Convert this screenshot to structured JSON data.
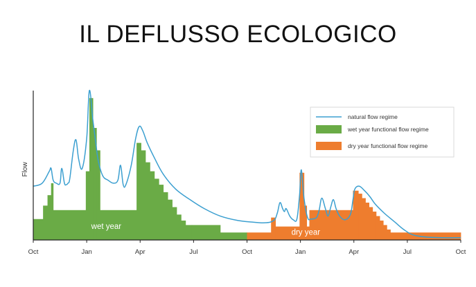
{
  "slide": {
    "title": "IL DEFLUSSO ECOLOGICO"
  },
  "chart_data": {
    "type": "area",
    "title": "",
    "xlabel": "",
    "ylabel": "Flow",
    "xlim": [
      0,
      24
    ],
    "ylim": [
      0,
      100
    ],
    "x_ticks": [
      {
        "x": 0,
        "label": "Oct"
      },
      {
        "x": 3,
        "label": "Jan"
      },
      {
        "x": 6,
        "label": "Apr"
      },
      {
        "x": 9,
        "label": "Jul"
      },
      {
        "x": 12,
        "label": "Oct"
      },
      {
        "x": 15,
        "label": "Jan"
      },
      {
        "x": 18,
        "label": "Apr"
      },
      {
        "x": 21,
        "label": "Jul"
      },
      {
        "x": 24,
        "label": "Oct"
      }
    ],
    "grid": false,
    "legend_position": "top-right",
    "colors": {
      "natural": "#3b9fd0",
      "wet": "#6aab46",
      "dry": "#ee7d2e",
      "axis": "#222222"
    },
    "series": [
      {
        "name": "natural flow regime",
        "kind": "line",
        "x": [
          0,
          0.5,
          0.9,
          1.0,
          1.12,
          1.3,
          1.5,
          1.6,
          1.75,
          1.85,
          1.95,
          2.05,
          2.25,
          2.4,
          2.55,
          2.75,
          3.0,
          3.15,
          3.35,
          3.5,
          3.65,
          3.9,
          4.2,
          4.5,
          4.75,
          4.9,
          5.05,
          5.2,
          5.5,
          5.75,
          5.95,
          6.15,
          6.4,
          6.8,
          7.3,
          8.0,
          8.8,
          9.6,
          10.5,
          11.5,
          12.3,
          13.0,
          13.5,
          13.7,
          13.85,
          14.0,
          14.1,
          14.2,
          14.4,
          14.6,
          14.8,
          14.95,
          15.05,
          15.2,
          15.4,
          15.6,
          15.9,
          16.05,
          16.2,
          16.4,
          16.55,
          16.7,
          16.85,
          17.0,
          17.2,
          17.5,
          17.8,
          17.95,
          18.05,
          18.3,
          18.6,
          18.9,
          19.2,
          19.7,
          20.3,
          20.8,
          21.3,
          22.0,
          23.0,
          24.0
        ],
        "y": [
          36,
          38,
          46,
          48,
          40,
          38,
          38,
          48,
          38,
          37,
          38,
          41,
          60,
          67,
          54,
          48,
          68,
          100,
          80,
          66,
          53,
          43,
          40,
          38,
          40,
          50,
          37,
          37,
          50,
          68,
          76,
          73,
          65,
          55,
          44,
          34,
          27,
          21,
          16,
          13,
          12,
          11.5,
          13,
          18,
          25,
          21,
          19,
          21,
          16,
          13.5,
          14,
          30,
          47,
          28,
          15,
          14,
          15,
          20,
          28,
          21,
          16,
          22,
          27,
          21,
          16,
          13.5,
          17,
          27,
          34,
          36,
          33,
          29,
          24,
          18,
          12,
          7,
          3.5,
          2,
          1.5,
          1.5
        ]
      },
      {
        "name": "wet year functional flow regime",
        "kind": "step",
        "x_start": 0,
        "x_end": 12,
        "edges": [
          0,
          0.55,
          0.8,
          1.0,
          1.12,
          2.95,
          3.15,
          3.35,
          3.55,
          3.75,
          5.8,
          6.05,
          6.3,
          6.55,
          6.8,
          7.05,
          7.3,
          7.55,
          7.8,
          8.05,
          8.3,
          8.55,
          8.9,
          10.5,
          12.0
        ],
        "values": [
          14,
          23,
          30,
          38,
          20,
          46,
          95,
          75,
          60,
          20,
          65,
          60,
          52,
          46,
          41,
          37,
          32,
          27,
          22,
          17,
          13,
          10,
          10,
          5
        ]
      },
      {
        "name": "dry year functional flow regime",
        "kind": "step",
        "x_start": 12,
        "x_end": 24,
        "edges": [
          12.0,
          13.35,
          13.6,
          14.95,
          15.2,
          15.35,
          15.5,
          17.95,
          18.25,
          18.45,
          18.65,
          18.85,
          19.05,
          19.25,
          19.45,
          19.65,
          19.85,
          20.05,
          24.0
        ],
        "values": [
          5,
          15,
          9,
          45,
          23,
          9,
          20,
          33,
          31,
          28,
          25,
          22,
          19,
          16,
          13,
          10,
          7,
          5
        ]
      }
    ],
    "annotations": [
      {
        "text": "wet year",
        "x": 4.1,
        "y": 7.3
      },
      {
        "text": "dry year",
        "x": 15.3,
        "y": 3.5
      }
    ]
  }
}
